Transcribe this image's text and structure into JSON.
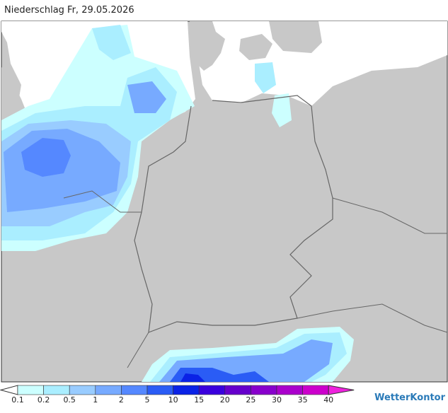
{
  "header": {
    "title": "Niederschlag Fr, 29.05.2026"
  },
  "legend": {
    "levels": [
      0.1,
      0.2,
      0.5,
      1,
      2,
      5,
      10,
      15,
      20,
      25,
      30,
      35,
      40
    ],
    "colors": [
      "#ccffff",
      "#aaeeff",
      "#99ccff",
      "#77aaff",
      "#5588ff",
      "#2a5cf5",
      "#0a22e6",
      "#3a00dd",
      "#6600cc",
      "#8800cc",
      "#aa00cc",
      "#cc00cc"
    ],
    "under_color": "#ffffff",
    "over_color": "#ee22dd"
  },
  "brand": "WetterKontor"
}
